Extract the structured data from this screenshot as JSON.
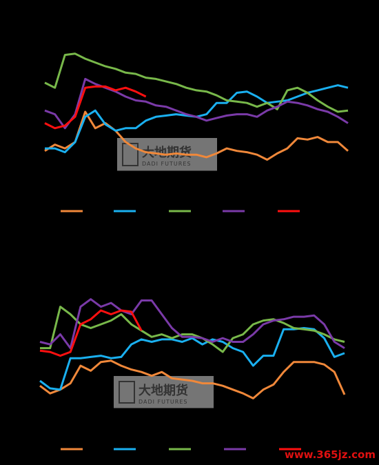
{
  "chart_data": [
    {
      "type": "line",
      "ylim": [
        0,
        100
      ],
      "series": [
        {
          "color": "#f0883a",
          "values": [
            16,
            21,
            18,
            23,
            47,
            34,
            38,
            32,
            23,
            18,
            15,
            14,
            13,
            14,
            13,
            13,
            11,
            14,
            18,
            16,
            15,
            13,
            9,
            14,
            18,
            26,
            25,
            27,
            23,
            23,
            16
          ]
        },
        {
          "color": "#1ab0f0",
          "values": [
            18,
            18,
            15,
            23,
            43,
            48,
            37,
            32,
            34,
            34,
            40,
            43,
            44,
            45,
            44,
            43,
            45,
            54,
            54,
            62,
            63,
            59,
            54,
            55,
            56,
            59,
            62,
            64,
            66,
            68,
            66
          ]
        },
        {
          "color": "#78b84a",
          "values": [
            70,
            66,
            92,
            93,
            89,
            86,
            83,
            81,
            78,
            77,
            74,
            73,
            71,
            69,
            66,
            64,
            63,
            60,
            56,
            55,
            54,
            51,
            54,
            49,
            64,
            66,
            62,
            56,
            51,
            47,
            48
          ]
        },
        {
          "color": "#7a3aa8",
          "values": [
            48,
            45,
            34,
            45,
            73,
            69,
            66,
            63,
            59,
            56,
            55,
            52,
            51,
            48,
            45,
            43,
            40,
            42,
            44,
            45,
            45,
            43,
            48,
            51,
            55,
            54,
            52,
            49,
            47,
            43,
            38
          ]
        },
        {
          "color": "#ff1010",
          "values": [
            38,
            34,
            36,
            43,
            66,
            67,
            67,
            64,
            66,
            63,
            59,
            null,
            null,
            null,
            null,
            null,
            null,
            null,
            null,
            null,
            null,
            null,
            null,
            null,
            null,
            null,
            null,
            null,
            null,
            null,
            null
          ]
        }
      ]
    },
    {
      "type": "line",
      "ylim": [
        0,
        100
      ],
      "series": [
        {
          "color": "#f0883a",
          "values": [
            18,
            12,
            15,
            20,
            34,
            30,
            37,
            38,
            34,
            31,
            29,
            26,
            29,
            24,
            23,
            22,
            20,
            20,
            18,
            15,
            12,
            8,
            15,
            19,
            29,
            37,
            37,
            37,
            35,
            29,
            11
          ]
        },
        {
          "color": "#1ab0f0",
          "values": [
            22,
            16,
            15,
            40,
            40,
            41,
            42,
            40,
            41,
            51,
            55,
            53,
            55,
            55,
            53,
            56,
            51,
            55,
            53,
            48,
            45,
            34,
            42,
            42,
            63,
            63,
            64,
            63,
            56,
            41,
            44
          ]
        },
        {
          "color": "#78b84a",
          "values": [
            48,
            48,
            81,
            75,
            67,
            64,
            67,
            70,
            75,
            67,
            62,
            57,
            59,
            56,
            59,
            59,
            56,
            51,
            45,
            56,
            59,
            67,
            70,
            71,
            68,
            64,
            63,
            62,
            59,
            55,
            53
          ]
        },
        {
          "color": "#7a3aa8",
          "values": [
            53,
            51,
            59,
            48,
            81,
            87,
            81,
            84,
            78,
            75,
            86,
            86,
            75,
            64,
            57,
            57,
            56,
            53,
            56,
            53,
            53,
            59,
            67,
            70,
            71,
            73,
            73,
            74,
            67,
            53,
            48
          ]
        },
        {
          "color": "#ff1010",
          "values": [
            46,
            45,
            42,
            45,
            67,
            71,
            78,
            75,
            78,
            77,
            62,
            null,
            null,
            null,
            null,
            null,
            null,
            null,
            null,
            null,
            null,
            null,
            null,
            null,
            null,
            null,
            null,
            null,
            null,
            null,
            null
          ]
        }
      ]
    }
  ],
  "watermark": {
    "logo": "大地期货",
    "subtitle": "DADI FUTURES"
  },
  "site": "www.365jz.com"
}
